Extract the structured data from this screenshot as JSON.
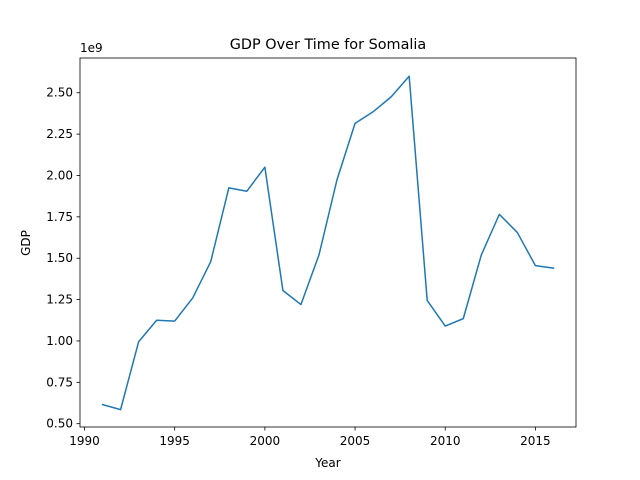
{
  "chart_data": {
    "type": "line",
    "title": "GDP Over Time for Somalia",
    "xlabel": "Year",
    "ylabel": "GDP",
    "y_offset_label": "1e9",
    "xlim": [
      1989.75,
      2017.25
    ],
    "ylim": [
      0.48,
      2.71
    ],
    "x_ticks": [
      1990,
      1995,
      2000,
      2005,
      2010,
      2015
    ],
    "x_tick_labels": [
      "1990",
      "1995",
      "2000",
      "2005",
      "2010",
      "2015"
    ],
    "y_ticks": [
      0.5,
      0.75,
      1.0,
      1.25,
      1.5,
      1.75,
      2.0,
      2.25,
      2.5
    ],
    "y_tick_labels": [
      "0.50",
      "0.75",
      "1.00",
      "1.25",
      "1.50",
      "1.75",
      "2.00",
      "2.25",
      "2.50"
    ],
    "grid": false,
    "legend": false,
    "series": [
      {
        "color": "#1f77b4",
        "x": [
          1991,
          1992,
          1993,
          1994,
          1995,
          1996,
          1997,
          1998,
          1999,
          2000,
          2001,
          2002,
          2003,
          2004,
          2005,
          2006,
          2007,
          2008,
          2009,
          2010,
          2011,
          2012,
          2013,
          2014,
          2015,
          2016
        ],
        "y": [
          0.615,
          0.585,
          0.995,
          1.125,
          1.12,
          1.26,
          1.48,
          1.925,
          1.905,
          2.05,
          1.305,
          1.22,
          1.52,
          1.975,
          2.315,
          2.385,
          2.475,
          2.6,
          1.245,
          1.09,
          1.135,
          1.52,
          1.765,
          1.655,
          1.455,
          1.44
        ]
      }
    ]
  }
}
